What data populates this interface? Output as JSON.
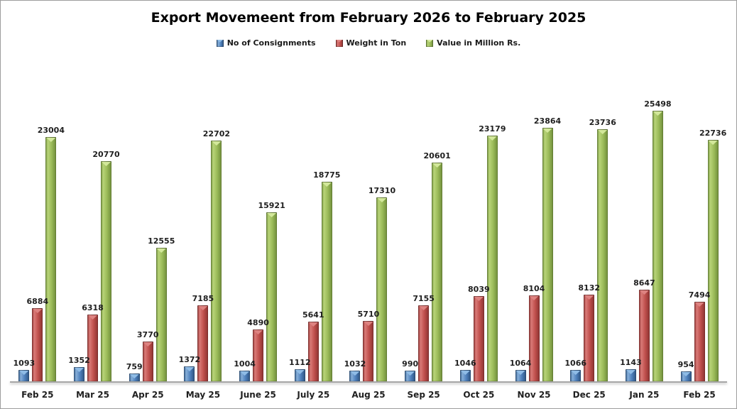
{
  "chart_data": {
    "type": "bar",
    "title": "Export Movemeent from February 2026 to February 2025",
    "legend_position": "top",
    "grid": false,
    "data_labels": true,
    "ylim": [
      0,
      25498
    ],
    "categories": [
      "Feb 25",
      "Mar 25",
      "Apr 25",
      "May 25",
      "June 25",
      "July 25",
      "Aug 25",
      "Sep 25",
      "Oct 25",
      "Nov 25",
      "Dec 25",
      "Jan 25",
      "Feb 25"
    ],
    "series": [
      {
        "name": "No of Consignments",
        "color": "#4F81BD",
        "light": "#86AFD9",
        "dark": "#2D5380",
        "cap": "#8FBCE6",
        "values": [
          1093,
          1352,
          759,
          1372,
          1004,
          1112,
          1032,
          990,
          1046,
          1064,
          1066,
          1143,
          954
        ]
      },
      {
        "name": "Weight in Ton",
        "color": "#C0504D",
        "light": "#D97A77",
        "dark": "#8A3230",
        "cap": "#DE8381",
        "values": [
          6884,
          6318,
          3770,
          7185,
          4890,
          5641,
          5710,
          7155,
          8039,
          8104,
          8132,
          8647,
          7494
        ]
      },
      {
        "name": "Value in Million Rs.",
        "color": "#9BBB59",
        "light": "#B8D478",
        "dark": "#6E8C3A",
        "cap": "#D3E89B",
        "values": [
          23004,
          20770,
          12555,
          22702,
          15921,
          18775,
          17310,
          20601,
          23179,
          23864,
          23736,
          25498,
          22736
        ]
      }
    ],
    "colors": {
      "axis_line": "#A6A6A6",
      "outer_border": "#9D9D9D",
      "background": "#FFFFFF",
      "label_text": "#1F1F1F"
    }
  }
}
